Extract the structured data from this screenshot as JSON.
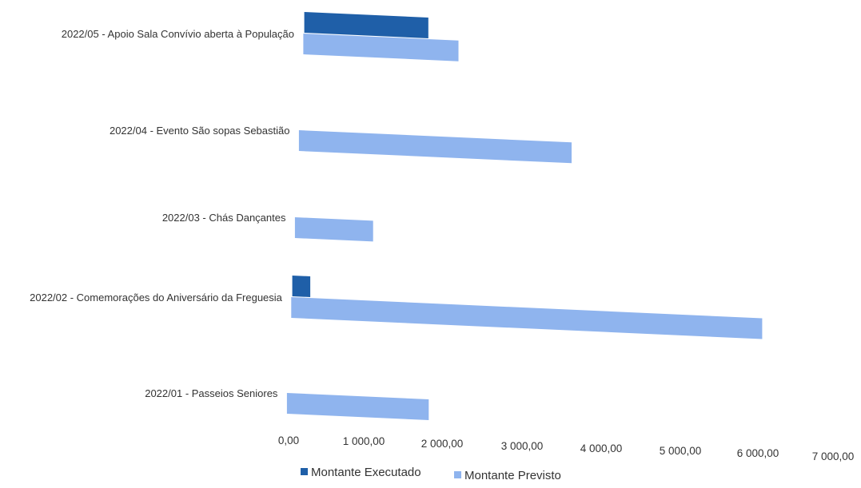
{
  "chart_data": {
    "type": "bar",
    "orientation": "horizontal",
    "categories": [
      "2022/05 - Apoio Sala Convívio aberta à População",
      "2022/04 - Evento São sopas Sebastião",
      "2022/03 - Chás Dançantes",
      "2022/02 - Comemorações do Aniversário da Freguesia",
      "2022/01 - Passeios Seniores"
    ],
    "series": [
      {
        "name": "Montante Executado",
        "color": "#1f5fa8",
        "values": [
          1600,
          0,
          0,
          230,
          0
        ]
      },
      {
        "name": "Montante Previsto",
        "color": "#8fb4ee",
        "values": [
          2000,
          3500,
          1000,
          6000,
          1800
        ]
      }
    ],
    "xlim": [
      0,
      7000
    ],
    "x_ticks": [
      "0,00",
      "1 000,00",
      "2 000,00",
      "3 000,00",
      "4 000,00",
      "5 000,00",
      "6 000,00",
      "7 000,00"
    ],
    "grid": false,
    "legend_position": "bottom"
  }
}
